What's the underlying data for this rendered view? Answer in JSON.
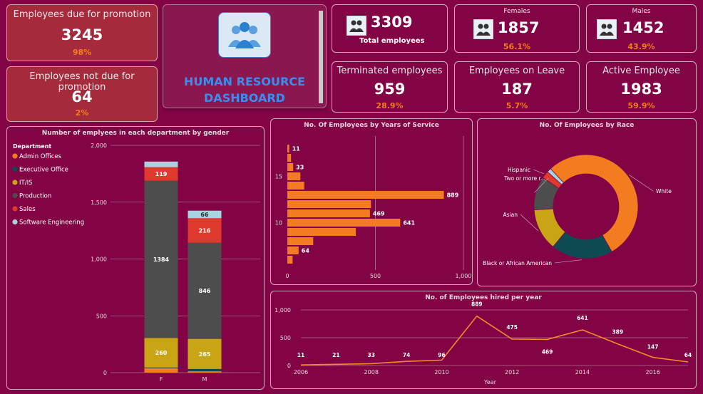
{
  "kpis": {
    "promo_due": {
      "label": "Employees due for promotion",
      "value": "3245",
      "pct": "98%"
    },
    "promo_not_due": {
      "label": "Employees not due for promotion",
      "value": "64",
      "pct": "2%"
    },
    "total": {
      "value": "3309",
      "label": "Total employees"
    },
    "females": {
      "label": "Females",
      "value": "1857",
      "pct": "56.1%"
    },
    "males": {
      "label": "Males",
      "value": "1452",
      "pct": "43.9%"
    },
    "terminated": {
      "label": "Terminated employees",
      "value": "959",
      "pct": "28.9%"
    },
    "leave": {
      "label": "Employees on Leave",
      "value": "187",
      "pct": "5.7%"
    },
    "active": {
      "label": "Active Employee",
      "value": "1983",
      "pct": "59.9%"
    }
  },
  "header": {
    "title_line1": "HUMAN RESOURCE",
    "title_line2": "DASHBOARD"
  },
  "colors": {
    "admin": "#f47c20",
    "executive": "#0d4a52",
    "itis": "#c9a414",
    "production": "#4d4d4d",
    "sales": "#e03a2e",
    "software": "#a8d3df",
    "line": "#f28a2a"
  },
  "chart_data": [
    {
      "id": "dept",
      "type": "bar",
      "title": "Number of emplyees in each department by gender",
      "legend_title": "Department",
      "legend_position": "top-left",
      "categories": [
        "F",
        "M"
      ],
      "ylim": [
        0,
        2000
      ],
      "yticks": [
        "0",
        "500",
        "1,000",
        "1,500",
        "2,000"
      ],
      "series": [
        {
          "name": "Admin Offices",
          "values": [
            40,
            12
          ]
        },
        {
          "name": "Executive Office",
          "values": [
            5,
            20
          ]
        },
        {
          "name": "IT/IS",
          "values": [
            260,
            265
          ]
        },
        {
          "name": "Production",
          "values": [
            1384,
            846
          ]
        },
        {
          "name": "Sales",
          "values": [
            119,
            216
          ]
        },
        {
          "name": "Software Engineering",
          "values": [
            49,
            66
          ]
        }
      ],
      "data_labels": [
        {
          "series": 2,
          "cat": 0,
          "text": "260"
        },
        {
          "series": 2,
          "cat": 1,
          "text": "265"
        },
        {
          "series": 3,
          "cat": 0,
          "text": "1384"
        },
        {
          "series": 3,
          "cat": 1,
          "text": "846"
        },
        {
          "series": 4,
          "cat": 0,
          "text": "119"
        },
        {
          "series": 4,
          "cat": 1,
          "text": "216"
        },
        {
          "series": 5,
          "cat": 1,
          "text": "66"
        }
      ]
    },
    {
      "id": "yos",
      "type": "bar",
      "orientation": "horizontal",
      "title": "No. Of Employees by Years of Service",
      "xlim": [
        0,
        1000
      ],
      "xticks": [
        "0",
        "500",
        "1,000"
      ],
      "y_tick_labels": [
        {
          "y": 15,
          "text": "15"
        },
        {
          "y": 10,
          "text": "10"
        }
      ],
      "y": [
        18,
        17,
        16,
        15,
        14,
        13,
        12,
        11,
        10,
        9,
        8,
        7,
        6
      ],
      "values": [
        11,
        21,
        33,
        74,
        96,
        889,
        475,
        469,
        641,
        389,
        147,
        64,
        30
      ],
      "value_labels": [
        "11",
        "",
        "33",
        "",
        "",
        "889",
        "",
        "469",
        "641",
        "",
        "",
        "64",
        ""
      ]
    },
    {
      "id": "race",
      "type": "pie",
      "title": "No. Of Employees by Race",
      "donut": true,
      "slices": [
        {
          "label": "White",
          "value": 1650
        },
        {
          "label": "Black or African American",
          "value": 590
        },
        {
          "label": "Asian",
          "value": 400
        },
        {
          "label": "Two or more r...",
          "value": 320
        },
        {
          "label": "Hispanic",
          "value": 70
        },
        {
          "label": "",
          "value": 40
        }
      ]
    },
    {
      "id": "hired",
      "type": "line",
      "title": "No. of Employees  hired per year",
      "xlabel": "Year",
      "x": [
        2006,
        2007,
        2008,
        2009,
        2010,
        2011,
        2012,
        2013,
        2014,
        2015,
        2016,
        2017
      ],
      "values": [
        11,
        21,
        33,
        74,
        96,
        889,
        475,
        469,
        641,
        389,
        147,
        64
      ],
      "labels": [
        "11",
        "21",
        "33",
        "74",
        "96",
        "889",
        "475",
        "469",
        "641",
        "389",
        "147",
        "64"
      ],
      "ylim": [
        0,
        1000
      ],
      "yticks": [
        "0",
        "500",
        "1,000"
      ],
      "xticks": [
        "2006",
        "2008",
        "2010",
        "2012",
        "2014",
        "2016"
      ]
    }
  ]
}
